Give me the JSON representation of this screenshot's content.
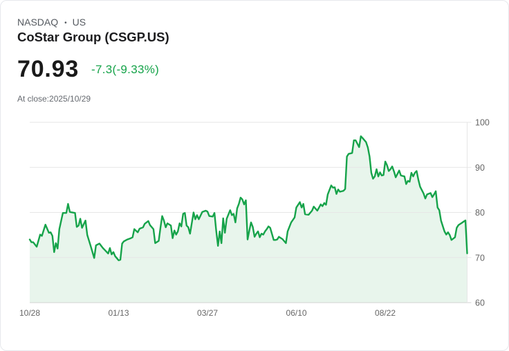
{
  "header": {
    "exchange": "NASDAQ",
    "separator": "•",
    "region": "US",
    "title": "CoStar Group (CSGP.US)"
  },
  "quote": {
    "price": "70.93",
    "change_text": "-7.3(-9.33%)",
    "close_label": "At close:",
    "close_date": "2025/10/29"
  },
  "colors": {
    "positive_negative_accent": "#16a34a",
    "line": "#16a34a",
    "area_fill": "#e8f5ec",
    "grid": "#e6e6e6",
    "axis": "#d2d2d2",
    "tick_label": "#666666"
  },
  "chart_data": {
    "type": "line",
    "title": "CoStar Group (CSGP.US)",
    "xlabel": "",
    "ylabel": "",
    "ylim": [
      60,
      100
    ],
    "x_range": [
      0,
      251
    ],
    "grid": true,
    "y_axis_position": "right",
    "y_ticks": [
      100,
      90,
      80,
      70,
      60
    ],
    "x_ticks": [
      {
        "index": 0,
        "label": "10/28"
      },
      {
        "index": 51,
        "label": "01/13"
      },
      {
        "index": 102,
        "label": "03/27"
      },
      {
        "index": 153,
        "label": "06/10"
      },
      {
        "index": 204,
        "label": "08/22"
      }
    ],
    "x": [
      0,
      1,
      2,
      4,
      6,
      7,
      9,
      11,
      12,
      13,
      14,
      15,
      16,
      17,
      19,
      21,
      22,
      23,
      26,
      27,
      28,
      29,
      30,
      32,
      33,
      35,
      37,
      38,
      40,
      42,
      43,
      45,
      46,
      47,
      48,
      49,
      51,
      52,
      53,
      54,
      56,
      58,
      59,
      60,
      62,
      63,
      65,
      66,
      68,
      69,
      71,
      72,
      74,
      75,
      76,
      77,
      78,
      79,
      81,
      82,
      83,
      84,
      85,
      86,
      87,
      88,
      89,
      90,
      91,
      92,
      94,
      95,
      96,
      97,
      99,
      101,
      102,
      103,
      105,
      106,
      107,
      108,
      109,
      110,
      111,
      112,
      113,
      115,
      116,
      117,
      118,
      119,
      120,
      121,
      122,
      123,
      124,
      125,
      126,
      127,
      128,
      129,
      130,
      131,
      132,
      133,
      134,
      135,
      136,
      137,
      138,
      140,
      141,
      142,
      143,
      145,
      147,
      148,
      150,
      152,
      153,
      155,
      156,
      157,
      158,
      160,
      162,
      163,
      165,
      167,
      168,
      169,
      170,
      171,
      173,
      174,
      175,
      176,
      177,
      178,
      180,
      181,
      182,
      183,
      185,
      186,
      187,
      189,
      190,
      191,
      193,
      194,
      195,
      196,
      197,
      198,
      199,
      200,
      201,
      202,
      203,
      204,
      205,
      206,
      207,
      208,
      209,
      210,
      212,
      213,
      215,
      216,
      217,
      218,
      219,
      220,
      221,
      222,
      223,
      224,
      226,
      227,
      228,
      230,
      231,
      232,
      233,
      234,
      235,
      236,
      238,
      239,
      240,
      241,
      242,
      244,
      245,
      246,
      248,
      249,
      250,
      251
    ],
    "values": [
      74.0,
      73.4,
      73.4,
      72.4,
      75.1,
      74.8,
      77.3,
      75.5,
      75.6,
      74.8,
      71.2,
      73.2,
      72.0,
      76.3,
      79.9,
      79.9,
      81.9,
      80.1,
      79.9,
      76.8,
      77.1,
      78.6,
      76.6,
      78.2,
      75.0,
      72.5,
      69.9,
      72.7,
      73.1,
      72.1,
      71.7,
      70.9,
      72.1,
      70.7,
      71.2,
      70.3,
      69.4,
      69.5,
      73.1,
      73.6,
      74.0,
      74.3,
      74.5,
      76.3,
      75.6,
      76.4,
      76.7,
      77.5,
      78.1,
      77.2,
      76.3,
      73.2,
      73.7,
      76.6,
      79.2,
      78.2,
      76.7,
      77.6,
      77.1,
      74.3,
      76.0,
      75.1,
      75.8,
      77.6,
      76.9,
      79.7,
      79.9,
      77.1,
      76.7,
      75.3,
      80.0,
      78.5,
      79.4,
      78.5,
      80.1,
      80.4,
      80.2,
      79.2,
      79.1,
      79.9,
      76.0,
      72.6,
      75.8,
      73.2,
      78.7,
      75.5,
      78.6,
      80.5,
      79.4,
      79.7,
      77.8,
      80.9,
      81.9,
      83.3,
      82.9,
      81.8,
      82.7,
      74.0,
      76.0,
      77.8,
      76.8,
      74.6,
      75.3,
      75.8,
      74.5,
      75.3,
      75.1,
      75.8,
      76.3,
      76.9,
      76.6,
      73.9,
      73.9,
      74.0,
      74.6,
      74.1,
      73.2,
      75.8,
      77.8,
      78.9,
      81.1,
      82.3,
      81.1,
      81.9,
      79.6,
      79.5,
      80.4,
      81.3,
      80.4,
      81.8,
      81.4,
      82.1,
      81.7,
      84.0,
      86.0,
      85.5,
      85.6,
      84.1,
      85.1,
      84.6,
      84.8,
      85.2,
      92.4,
      93.0,
      93.2,
      96.0,
      96.0,
      94.5,
      96.9,
      96.5,
      95.6,
      94.4,
      92.4,
      88.8,
      87.5,
      88.0,
      89.6,
      88.0,
      88.9,
      88.2,
      88.3,
      91.3,
      90.5,
      89.2,
      89.6,
      90.2,
      89.1,
      87.8,
      89.3,
      88.2,
      88.0,
      86.3,
      87.0,
      86.8,
      88.8,
      88.0,
      88.8,
      89.2,
      87.3,
      85.7,
      84.2,
      83.1,
      84.0,
      84.3,
      83.4,
      84.0,
      84.7,
      81.1,
      80.5,
      78.2,
      75.8,
      75.1,
      75.6,
      75.0,
      73.9,
      74.5,
      76.6,
      77.2,
      77.7,
      78.0,
      78.23,
      70.93
    ],
    "last_value": 70.93,
    "previous_close": 78.23
  }
}
